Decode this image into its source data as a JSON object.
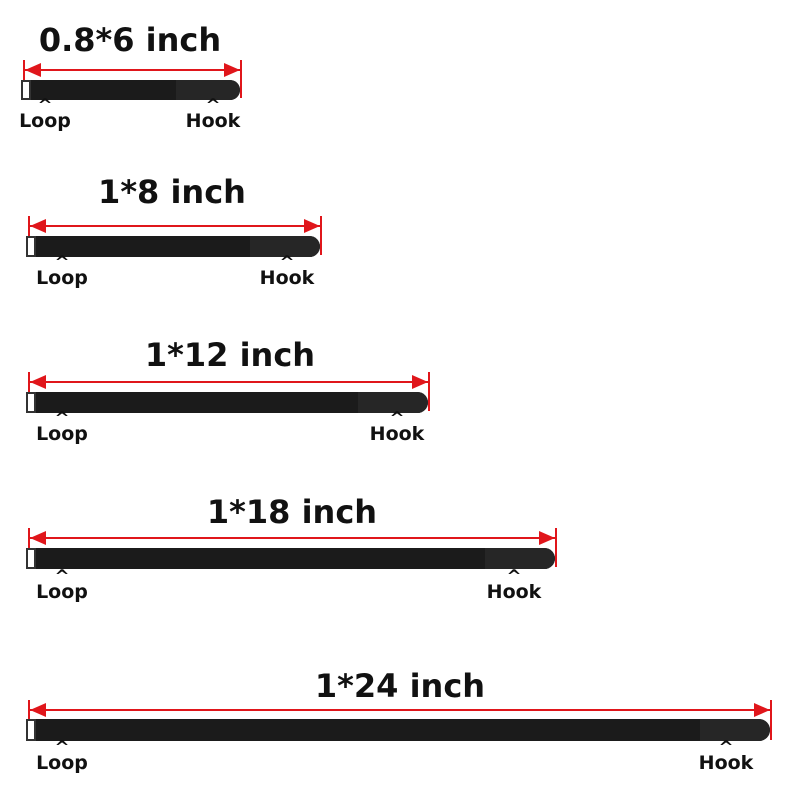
{
  "colors": {
    "arrow": "#e0161b",
    "strap": "#1b1b1b"
  },
  "rows": [
    {
      "title": "0.8*6 inch",
      "loop": "Loop",
      "hook": "Hook",
      "caret": "^"
    },
    {
      "title": "1*8 inch",
      "loop": "Loop",
      "hook": "Hook",
      "caret": "^"
    },
    {
      "title": "1*12 inch",
      "loop": "Loop",
      "hook": "Hook",
      "caret": "^"
    },
    {
      "title": "1*18 inch",
      "loop": "Loop",
      "hook": "Hook",
      "caret": "^"
    },
    {
      "title": "1*24 inch",
      "loop": "Loop",
      "hook": "Hook",
      "caret": "^"
    }
  ]
}
